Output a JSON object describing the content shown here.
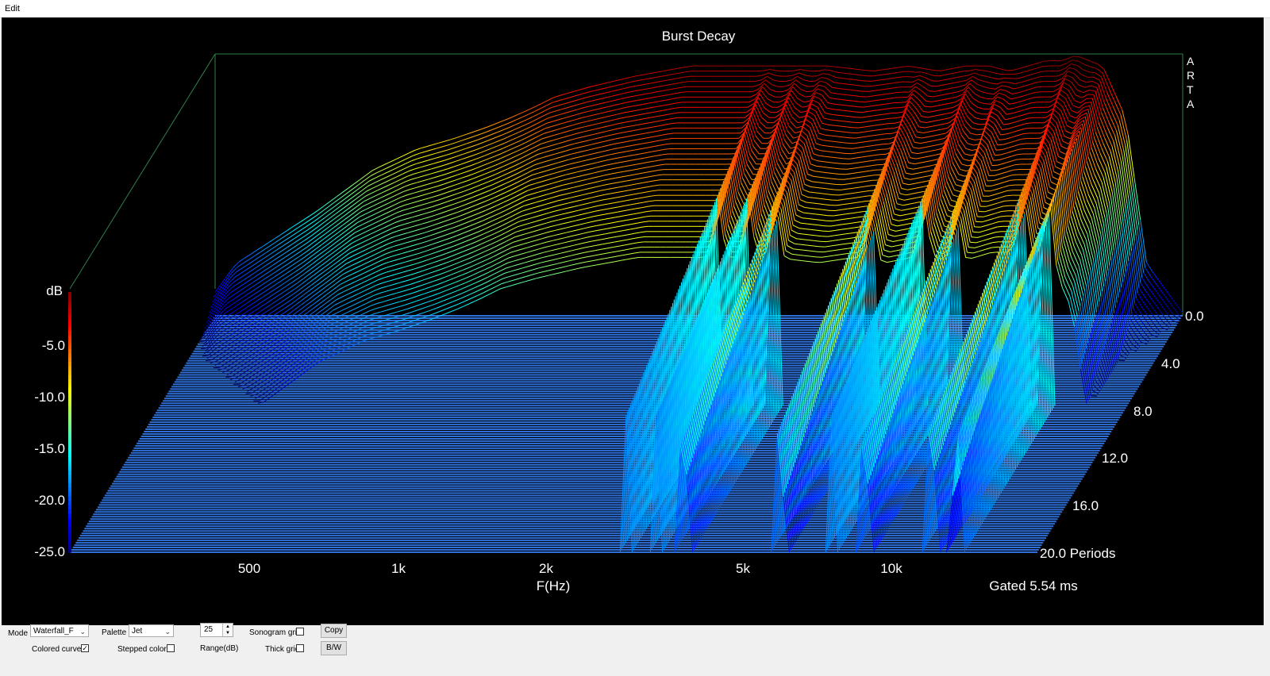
{
  "menu": {
    "edit": "Edit"
  },
  "chart_data": {
    "type": "waterfall",
    "title": "Burst Decay",
    "watermark": "ARTA",
    "xlabel": "F(Hz)",
    "x_scale": "log",
    "x_ticks": [
      "500",
      "1k",
      "2k",
      "5k",
      "10k"
    ],
    "z_label": "dB",
    "z_ticks": [
      "-5.0",
      "-10.0",
      "-15.0",
      "-20.0",
      "-25.0"
    ],
    "z_range": [
      -25,
      0
    ],
    "y_ticks": [
      "0.0",
      "4.0",
      "8.0",
      "12.0",
      "16.0",
      "20.0 Periods"
    ],
    "y_range": [
      0,
      20
    ],
    "y_unit": "Periods",
    "gate_note": "Gated 5.54 ms",
    "palette": "Jet",
    "colors": {
      "floor": "#2e6fd8",
      "background": "#000000",
      "frame": "#3b8f5a",
      "text": "#ffffff"
    },
    "frequency_axis": [
      200,
      300,
      400,
      500,
      600,
      700,
      800,
      900,
      1000,
      1200,
      1500,
      2000,
      2500,
      3000,
      3500,
      4000,
      5000,
      6000,
      7000,
      8000,
      9000,
      10000,
      11000,
      12000,
      13000,
      14000,
      16000,
      18000,
      20000
    ],
    "initial_response_db": [
      -20,
      -15,
      -11,
      -9,
      -8,
      -7,
      -6,
      -5,
      -4,
      -3,
      -2,
      -1,
      -1,
      -1,
      -1,
      -1,
      -1.5,
      -1,
      -1.5,
      -1,
      -1,
      -1.5,
      -1,
      -0.5,
      -0.5,
      0,
      -1,
      -6,
      -20
    ],
    "decay_resonances_hz": [
      3000,
      3500,
      4000,
      6500,
      8500,
      10000,
      14000,
      16000
    ],
    "long_ridge": {
      "frequency_hz": 10000,
      "periods": [
        0,
        13
      ]
    }
  },
  "controls": {
    "mode_label": "Mode",
    "mode_value": "Waterfall_F",
    "palette_label": "Palette",
    "palette_value": "Jet",
    "range_value": "25",
    "range_label": "Range(dB)",
    "sonogram_grid_label": "Sonogram grid",
    "sonogram_grid_checked": false,
    "copy_label": "Copy",
    "colored_curves_label": "Colored curves",
    "colored_curves_checked": true,
    "stepped_colors_label": "Stepped colors",
    "stepped_colors_checked": false,
    "thick_grid_label": "Thick grid",
    "thick_grid_checked": false,
    "bw_label": "B/W"
  }
}
